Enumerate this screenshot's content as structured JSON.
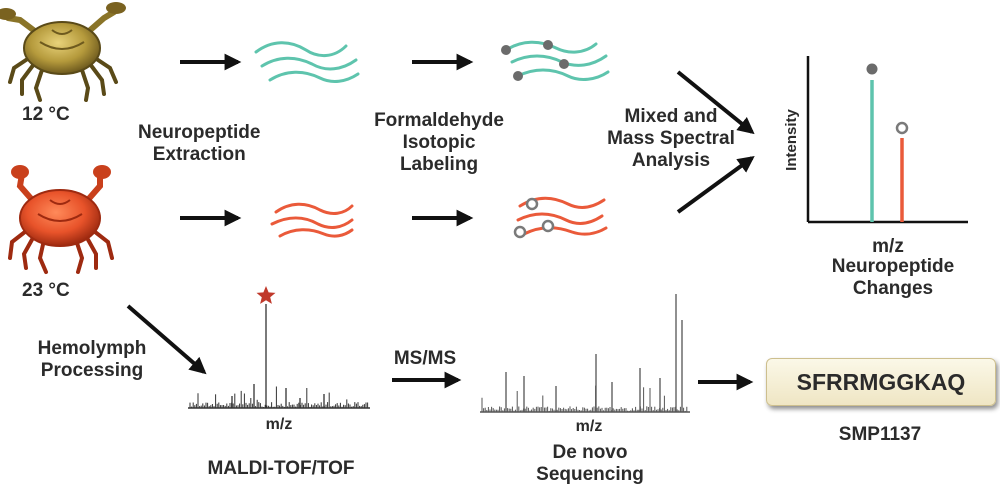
{
  "temperatures": {
    "cold": "12 °C",
    "warm": "23 °C"
  },
  "steps": {
    "extraction": [
      "Neuropeptide",
      "Extraction"
    ],
    "labeling": [
      "Formaldehyde",
      "Isotopic",
      "Labeling"
    ],
    "mixed": [
      "Mixed and",
      "Mass Spectral",
      "Analysis"
    ],
    "hemolymph": [
      "Hemolymph",
      "Processing"
    ],
    "msms": "MS/MS",
    "maldi": "MALDI-TOF/TOF",
    "denovo_italic": "De novo",
    "denovo_rest": "Sequencing"
  },
  "result_chart": {
    "ylabel": "Intensity",
    "xlabel": "m/z",
    "caption": [
      "Neuropeptide",
      "Changes"
    ]
  },
  "spectra": {
    "xlabel": "m/z"
  },
  "peptide": {
    "sequence": "SFRRMGGKAQ",
    "name": "SMP1137"
  },
  "colors": {
    "teal": "#5ec4ad",
    "red": "#ea5a3a",
    "cold_crab": "#b59a3c",
    "warm_crab": "#e8532a",
    "arrow": "#111111",
    "star": "#c0392b"
  },
  "icons": {
    "cold_crab": "crab-icon",
    "warm_crab": "crab-icon",
    "star": "star-icon"
  }
}
